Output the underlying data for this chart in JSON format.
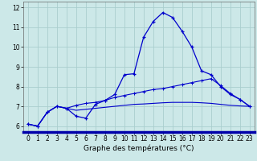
{
  "xlabel": "Graphe des températures (°C)",
  "background_color": "#cce8e8",
  "grid_color": "#aacece",
  "line_color": "#0000cc",
  "axis_bottom_color": "#0000aa",
  "x": [
    0,
    1,
    2,
    3,
    4,
    5,
    6,
    7,
    8,
    9,
    10,
    11,
    12,
    13,
    14,
    15,
    16,
    17,
    18,
    19,
    20,
    21,
    22,
    23
  ],
  "y_main": [
    6.1,
    6.0,
    6.7,
    7.0,
    6.9,
    6.5,
    6.4,
    7.1,
    7.3,
    7.6,
    8.6,
    8.65,
    10.5,
    11.3,
    11.75,
    11.5,
    10.8,
    10.0,
    8.8,
    8.6,
    8.0,
    7.6,
    7.35,
    7.0
  ],
  "y_avg1": [
    6.1,
    6.0,
    6.7,
    7.0,
    6.9,
    7.05,
    7.15,
    7.2,
    7.3,
    7.45,
    7.55,
    7.65,
    7.75,
    7.85,
    7.9,
    8.0,
    8.1,
    8.2,
    8.3,
    8.4,
    8.05,
    7.65,
    7.35,
    7.0
  ],
  "y_avg2": [
    6.1,
    6.0,
    6.7,
    7.0,
    6.9,
    6.8,
    6.85,
    6.9,
    6.95,
    7.0,
    7.05,
    7.1,
    7.12,
    7.15,
    7.18,
    7.2,
    7.2,
    7.2,
    7.18,
    7.15,
    7.1,
    7.05,
    7.02,
    7.0
  ],
  "ylim": [
    5.7,
    12.3
  ],
  "xlim": [
    -0.5,
    23.5
  ],
  "yticks": [
    6,
    7,
    8,
    9,
    10,
    11,
    12
  ],
  "xticks": [
    0,
    1,
    2,
    3,
    4,
    5,
    6,
    7,
    8,
    9,
    10,
    11,
    12,
    13,
    14,
    15,
    16,
    17,
    18,
    19,
    20,
    21,
    22,
    23
  ],
  "tick_fontsize": 5.5,
  "xlabel_fontsize": 6.5
}
